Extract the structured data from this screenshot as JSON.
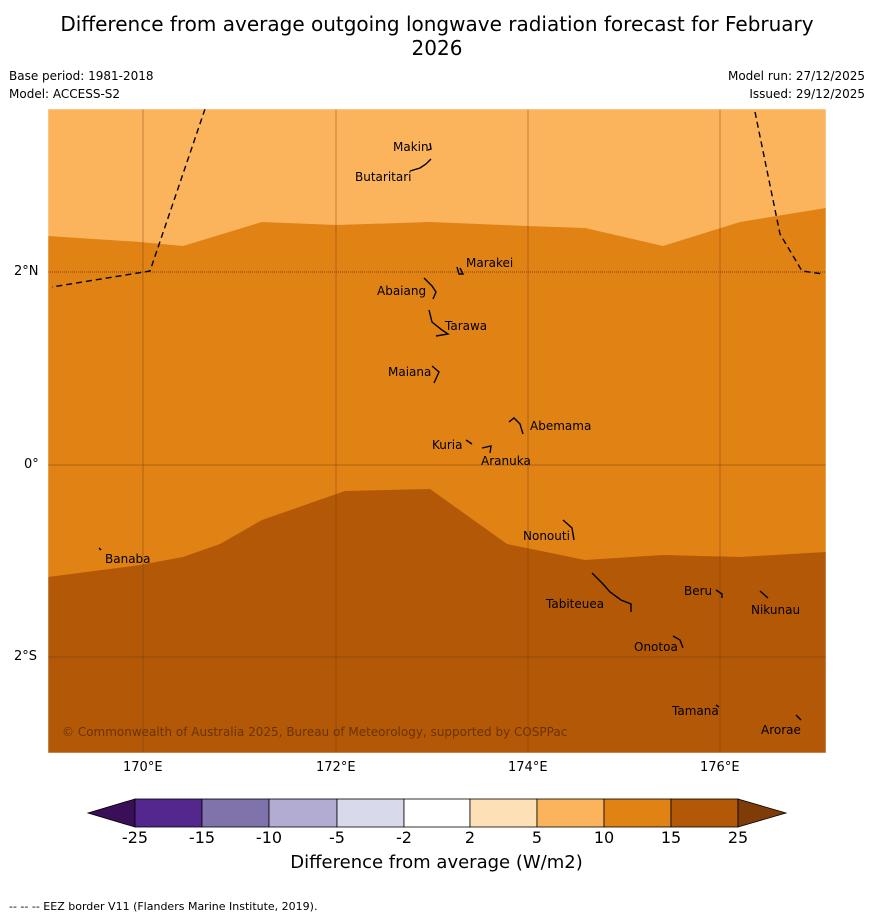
{
  "title": "Difference from average outgoing longwave radiation forecast for February 2026",
  "meta_left": [
    "Base period: 1981-2018",
    "Model: ACCESS-S2"
  ],
  "meta_right": [
    "Model run: 27/12/2025",
    "Issued: 29/12/2025"
  ],
  "lat_labels": [
    "2°N",
    "0°",
    "2°S"
  ],
  "lon_labels": [
    "170°E",
    "172°E",
    "174°E",
    "176°E"
  ],
  "places": [
    "Makin",
    "Butaritari",
    "Marakei",
    "Abaiang",
    "Tarawa",
    "Maiana",
    "Abemama",
    "Kuria",
    "Aranuka",
    "Nonouti",
    "Banaba",
    "Beru",
    "Nikunau",
    "Tabiteuea",
    "Onotoa",
    "Tamana",
    "Arorae"
  ],
  "copyright": "© Commonwealth of Australia 2025, Bureau of Meteorology, supported by COSPPac",
  "legend": {
    "title": "Difference from average (W/m2)",
    "ticks": [
      "-25",
      "-15",
      "-10",
      "-5",
      "-2",
      "2",
      "5",
      "10",
      "15",
      "25"
    ],
    "colors": [
      "#3b0f58",
      "#54278f",
      "#8073ac",
      "#b2abd2",
      "#d8daeb",
      "#ffffff",
      "#fee0b6",
      "#fbb45c",
      "#e08214",
      "#b35806",
      "#7f3b08"
    ]
  },
  "footer": "--  --  -- EEZ border V11 (Flanders Marine Institute, 2019)."
}
